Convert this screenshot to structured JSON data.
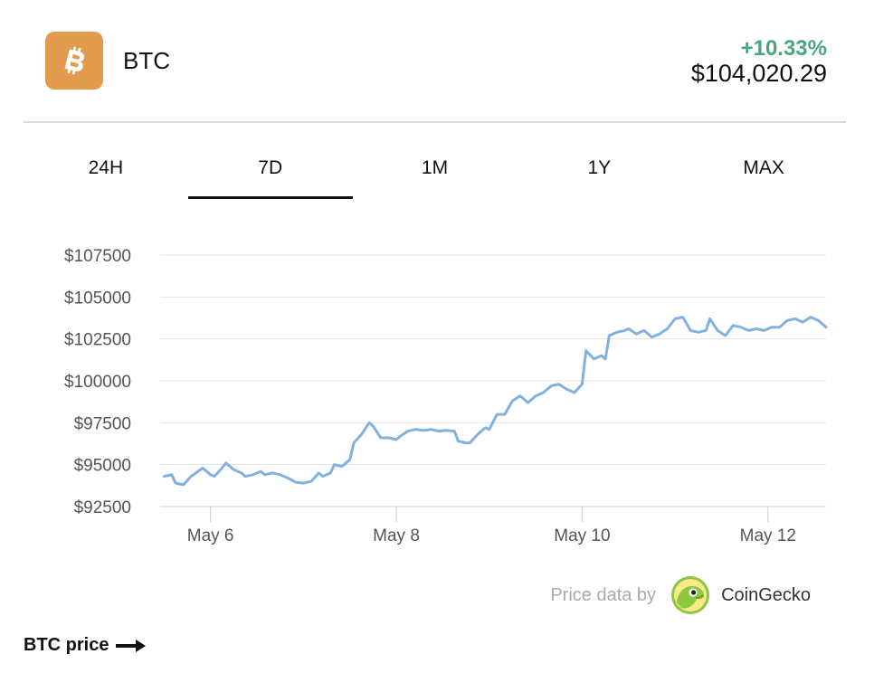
{
  "header": {
    "coin_symbol": "BTC",
    "logo_icon": "bitcoin-icon",
    "logo_color": "#e39b4e",
    "change": "+10.33%",
    "change_color": "#4aa67f",
    "price": "$104,020.29"
  },
  "tabs": [
    {
      "label": "24H",
      "active": false
    },
    {
      "label": "7D",
      "active": true
    },
    {
      "label": "1M",
      "active": false
    },
    {
      "label": "1Y",
      "active": false
    },
    {
      "label": "MAX",
      "active": false
    }
  ],
  "attribution": {
    "text": "Price data by",
    "provider": "CoinGecko",
    "provider_icon": "coingecko-logo-icon"
  },
  "footer": {
    "label": "BTC price",
    "icon": "arrow-right-icon"
  },
  "chart_data": {
    "type": "line",
    "title": "",
    "xlabel": "",
    "ylabel": "",
    "line_color": "#82b1e1",
    "grid": true,
    "ylim": [
      92500,
      107500
    ],
    "y_ticks": [
      {
        "value": 107500,
        "label": "$107500"
      },
      {
        "value": 105000,
        "label": "$105000"
      },
      {
        "value": 102500,
        "label": "$102500"
      },
      {
        "value": 100000,
        "label": "$100000"
      },
      {
        "value": 97500,
        "label": "$97500"
      },
      {
        "value": 95000,
        "label": "$95000"
      },
      {
        "value": 92500,
        "label": "$92500"
      }
    ],
    "xlim": [
      "2025-05-05T11:00",
      "2025-05-12T15:00"
    ],
    "x_ticks": [
      {
        "value": "2025-05-06T00:00",
        "label": "May 6"
      },
      {
        "value": "2025-05-08T00:00",
        "label": "May 8"
      },
      {
        "value": "2025-05-10T00:00",
        "label": "May 10"
      },
      {
        "value": "2025-05-12T00:00",
        "label": "May 12"
      }
    ],
    "series": [
      {
        "points": [
          [
            "2025-05-05T12:00",
            94300
          ],
          [
            "2025-05-05T14:00",
            94400
          ],
          [
            "2025-05-05T15:00",
            93900
          ],
          [
            "2025-05-05T17:00",
            93800
          ],
          [
            "2025-05-05T19:00",
            94300
          ],
          [
            "2025-05-05T22:00",
            94800
          ],
          [
            "2025-05-06T00:00",
            94400
          ],
          [
            "2025-05-06T01:00",
            94300
          ],
          [
            "2025-05-06T03:00",
            94800
          ],
          [
            "2025-05-06T04:00",
            95100
          ],
          [
            "2025-05-06T06:00",
            94700
          ],
          [
            "2025-05-06T08:00",
            94500
          ],
          [
            "2025-05-06T09:00",
            94300
          ],
          [
            "2025-05-06T11:00",
            94400
          ],
          [
            "2025-05-06T13:00",
            94600
          ],
          [
            "2025-05-06T14:00",
            94400
          ],
          [
            "2025-05-06T16:00",
            94500
          ],
          [
            "2025-05-06T18:00",
            94400
          ],
          [
            "2025-05-06T20:00",
            94200
          ],
          [
            "2025-05-06T22:00",
            93950
          ],
          [
            "2025-05-07T00:00",
            93900
          ],
          [
            "2025-05-07T02:00",
            94000
          ],
          [
            "2025-05-07T04:00",
            94500
          ],
          [
            "2025-05-07T05:00",
            94300
          ],
          [
            "2025-05-07T07:00",
            94500
          ],
          [
            "2025-05-07T08:00",
            95000
          ],
          [
            "2025-05-07T10:00",
            94900
          ],
          [
            "2025-05-07T12:00",
            95300
          ],
          [
            "2025-05-07T13:00",
            96300
          ],
          [
            "2025-05-07T15:00",
            96800
          ],
          [
            "2025-05-07T17:00",
            97500
          ],
          [
            "2025-05-07T18:00",
            97300
          ],
          [
            "2025-05-07T20:00",
            96600
          ],
          [
            "2025-05-07T22:00",
            96600
          ],
          [
            "2025-05-08T00:00",
            96500
          ],
          [
            "2025-05-08T01:00",
            96700
          ],
          [
            "2025-05-08T03:00",
            97000
          ],
          [
            "2025-05-08T05:00",
            97100
          ],
          [
            "2025-05-08T07:00",
            97050
          ],
          [
            "2025-05-08T09:00",
            97100
          ],
          [
            "2025-05-08T11:00",
            97000
          ],
          [
            "2025-05-08T13:00",
            97050
          ],
          [
            "2025-05-08T15:00",
            97000
          ],
          [
            "2025-05-08T16:00",
            96400
          ],
          [
            "2025-05-08T18:00",
            96300
          ],
          [
            "2025-05-08T19:00",
            96300
          ],
          [
            "2025-05-08T21:00",
            96800
          ],
          [
            "2025-05-08T23:00",
            97200
          ],
          [
            "2025-05-09T00:00",
            97100
          ],
          [
            "2025-05-09T02:00",
            98000
          ],
          [
            "2025-05-09T04:00",
            98000
          ],
          [
            "2025-05-09T06:00",
            98800
          ],
          [
            "2025-05-09T08:00",
            99100
          ],
          [
            "2025-05-09T10:00",
            98700
          ],
          [
            "2025-05-09T12:00",
            99100
          ],
          [
            "2025-05-09T14:00",
            99300
          ],
          [
            "2025-05-09T16:00",
            99700
          ],
          [
            "2025-05-09T18:00",
            99800
          ],
          [
            "2025-05-09T20:00",
            99500
          ],
          [
            "2025-05-09T22:00",
            99300
          ],
          [
            "2025-05-10T00:00",
            99800
          ],
          [
            "2025-05-10T01:00",
            101800
          ],
          [
            "2025-05-10T03:00",
            101300
          ],
          [
            "2025-05-10T05:00",
            101500
          ],
          [
            "2025-05-10T06:00",
            101300
          ],
          [
            "2025-05-10T07:00",
            102700
          ],
          [
            "2025-05-10T09:00",
            102900
          ],
          [
            "2025-05-10T11:00",
            103000
          ],
          [
            "2025-05-10T12:00",
            103100
          ],
          [
            "2025-05-10T14:00",
            102800
          ],
          [
            "2025-05-10T16:00",
            103000
          ],
          [
            "2025-05-10T18:00",
            102600
          ],
          [
            "2025-05-10T20:00",
            102800
          ],
          [
            "2025-05-10T22:00",
            103100
          ],
          [
            "2025-05-11T00:00",
            103700
          ],
          [
            "2025-05-11T02:00",
            103800
          ],
          [
            "2025-05-11T04:00",
            103000
          ],
          [
            "2025-05-11T06:00",
            102900
          ],
          [
            "2025-05-11T08:00",
            103000
          ],
          [
            "2025-05-11T09:00",
            103700
          ],
          [
            "2025-05-11T11:00",
            103000
          ],
          [
            "2025-05-11T13:00",
            102700
          ],
          [
            "2025-05-11T15:00",
            103300
          ],
          [
            "2025-05-11T17:00",
            103200
          ],
          [
            "2025-05-11T19:00",
            103000
          ],
          [
            "2025-05-11T21:00",
            103100
          ],
          [
            "2025-05-11T23:00",
            103000
          ],
          [
            "2025-05-12T01:00",
            103200
          ],
          [
            "2025-05-12T03:00",
            103200
          ],
          [
            "2025-05-12T05:00",
            103600
          ],
          [
            "2025-05-12T07:00",
            103700
          ],
          [
            "2025-05-12T09:00",
            103500
          ],
          [
            "2025-05-12T11:00",
            103800
          ],
          [
            "2025-05-12T13:00",
            103600
          ],
          [
            "2025-05-12T15:00",
            103200
          ]
        ]
      }
    ]
  }
}
